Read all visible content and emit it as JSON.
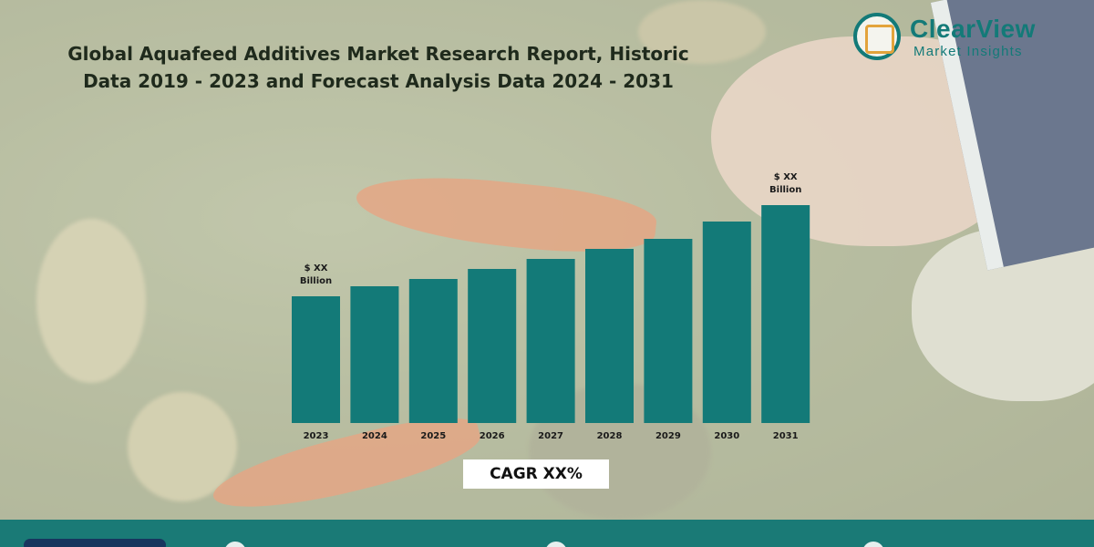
{
  "title": {
    "line1": "Global Aquafeed Additives Market Research Report, Historic",
    "line2": "Data 2019 - 2023 and Forecast Analysis Data 2024 - 2031"
  },
  "logo": {
    "name": "ClearView",
    "tagline": "Market Insights"
  },
  "colors": {
    "bar": "#137a78",
    "brand": "#137a78",
    "footer": "#1a7a76"
  },
  "chart_data": {
    "type": "bar",
    "title": "Global Aquafeed Additives Market Research Report, Historic Data 2019 - 2023 and Forecast Analysis Data 2024 - 2031",
    "xlabel": "",
    "ylabel": "",
    "categories": [
      "2023",
      "2024",
      "2025",
      "2026",
      "2027",
      "2028",
      "2029",
      "2030",
      "2031"
    ],
    "values": [
      139,
      150,
      158,
      169,
      180,
      191,
      202,
      221,
      239
    ],
    "value_note": "relative bar heights; no numeric axis shown",
    "ylim": [
      0,
      250
    ],
    "grid": false,
    "annotations": [
      {
        "category": "2023",
        "label_line1": "$ XX",
        "label_line2": "Billion"
      },
      {
        "category": "2031",
        "label_line1": "$ XX",
        "label_line2": "Billion"
      }
    ],
    "cagr_label": "CAGR XX%"
  }
}
